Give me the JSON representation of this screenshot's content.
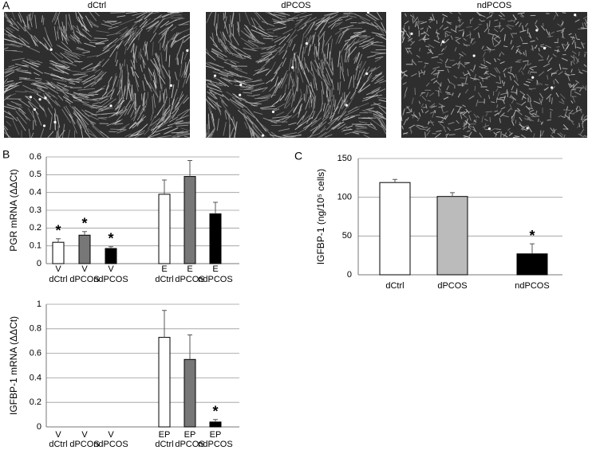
{
  "panel_labels": [
    "A",
    "B",
    "C"
  ],
  "images": [
    {
      "label": "dCtrl"
    },
    {
      "label": "dPCOS"
    },
    {
      "label": "ndPCOS"
    }
  ],
  "chart_data": [
    {
      "type": "bar",
      "ylabel": "PGR mRNA (ΔΔCt)",
      "categories": [
        "dCtrl",
        "dPCOS",
        "ndPCOS",
        "dCtrl",
        "dPCOS",
        "ndPCOS"
      ],
      "treatments": [
        "V",
        "V",
        "V",
        "E",
        "E",
        "E"
      ],
      "values": [
        0.12,
        0.16,
        0.085,
        0.39,
        0.49,
        0.28
      ],
      "errors": [
        0.02,
        0.02,
        0.01,
        0.08,
        0.09,
        0.065
      ],
      "significance": [
        "*",
        "*",
        "*",
        null,
        null,
        null
      ],
      "colors": [
        "#ffffff",
        "#777777",
        "#000000",
        "#ffffff",
        "#777777",
        "#000000"
      ],
      "ylim": [
        0,
        0.6
      ],
      "yticks": [
        0,
        0.1,
        0.2,
        0.3,
        0.4,
        0.5,
        0.6
      ],
      "grid": true
    },
    {
      "type": "bar",
      "ylabel": "IGFBP-1 mRNA (ΔΔCt)",
      "categories": [
        "dCtrl",
        "dPCOS",
        "ndPCOS",
        "dCtrl",
        "dPCOS",
        "ndPCOS"
      ],
      "treatments": [
        "V",
        "V",
        "V",
        "EP",
        "EP",
        "EP"
      ],
      "values": [
        0,
        0,
        0,
        0.73,
        0.55,
        0.04
      ],
      "errors": [
        null,
        null,
        null,
        0.22,
        0.2,
        0.02
      ],
      "significance": [
        null,
        null,
        null,
        null,
        null,
        "*"
      ],
      "colors": [
        "#ffffff",
        "#777777",
        "#000000",
        "#ffffff",
        "#777777",
        "#000000"
      ],
      "ylim": [
        0,
        1
      ],
      "yticks": [
        0,
        0.2,
        0.4,
        0.6,
        0.8,
        1
      ],
      "grid": true
    },
    {
      "type": "bar",
      "ylabel": "IGFBP-1 (ng/10⁵ cells)",
      "categories": [
        "dCtrl",
        "dPCOS",
        "ndPCOS"
      ],
      "values": [
        119,
        101,
        27
      ],
      "errors": [
        4,
        5,
        13
      ],
      "significance": [
        null,
        null,
        "*"
      ],
      "colors": [
        "#ffffff",
        "#bbbbbb",
        "#000000"
      ],
      "ylim": [
        0,
        150
      ],
      "yticks": [
        0,
        50,
        100,
        150
      ],
      "grid": true
    }
  ]
}
